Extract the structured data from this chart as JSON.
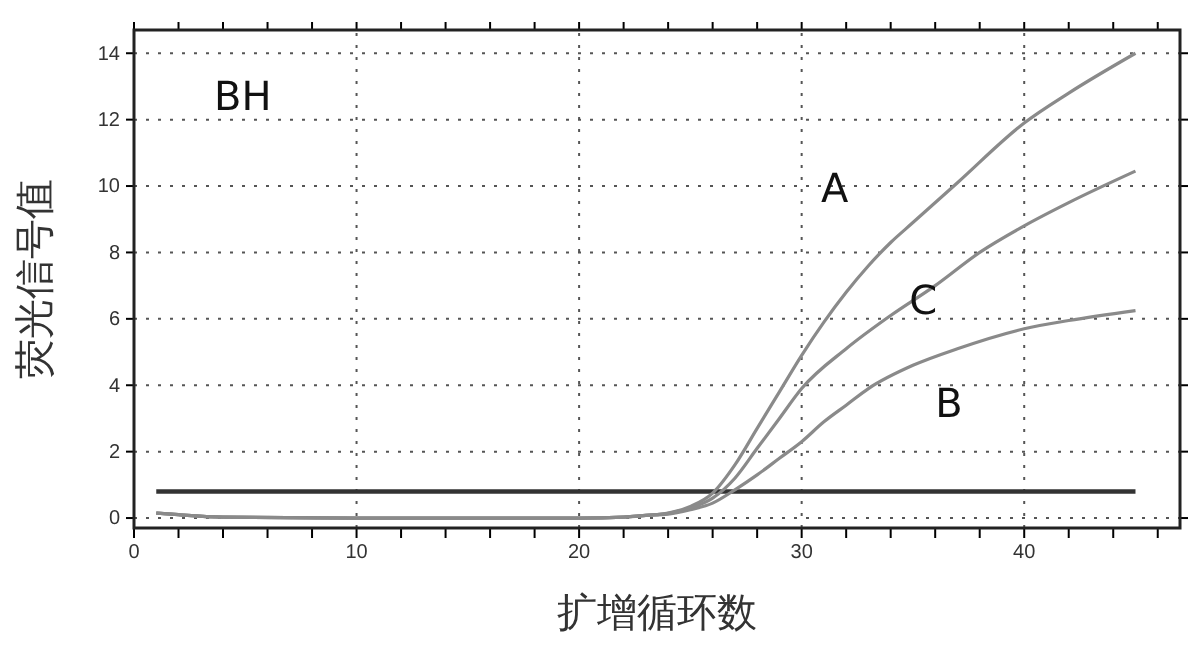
{
  "chart_data": {
    "type": "line",
    "xlabel": "扩增循环数",
    "ylabel": "荧光信号值",
    "annotations": [
      "BH"
    ],
    "xlim": [
      0,
      47
    ],
    "ylim": [
      -0.3,
      14.7
    ],
    "xticks": [
      0,
      {
        "value": 2,
        "label": null
      },
      {
        "value": 4,
        "label": null
      },
      {
        "value": 6,
        "label": null
      },
      {
        "value": 8,
        "label": null
      },
      10,
      {
        "value": 12,
        "label": null
      },
      {
        "value": 14,
        "label": null
      },
      {
        "value": 16,
        "label": null
      },
      {
        "value": 18,
        "label": null
      },
      20,
      {
        "value": 22,
        "label": null
      },
      {
        "value": 24,
        "label": null
      },
      {
        "value": 26,
        "label": null
      },
      {
        "value": 28,
        "label": null
      },
      30,
      {
        "value": 32,
        "label": null
      },
      {
        "value": 34,
        "label": null
      },
      {
        "value": 36,
        "label": null
      },
      {
        "value": 38,
        "label": null
      },
      40,
      {
        "value": 42,
        "label": null
      },
      {
        "value": 44,
        "label": null
      },
      {
        "value": 46,
        "label": null
      }
    ],
    "yticks": [
      0,
      2,
      4,
      6,
      8,
      10,
      12,
      14
    ],
    "grid": true,
    "line_style": "solid",
    "ref_lines": [
      {
        "axis": "y",
        "value": 0.8,
        "color": "#333333"
      }
    ],
    "series": [
      {
        "name": "A",
        "color": "#8a8a8a",
        "x": [
          1,
          2,
          4,
          10,
          20,
          22,
          23,
          24,
          25,
          26,
          27,
          28,
          29,
          30,
          31,
          32,
          33,
          34,
          35,
          37,
          40,
          42,
          45
        ],
        "values": [
          0.15,
          0.1,
          0.03,
          0,
          0,
          0.03,
          0.08,
          0.15,
          0.35,
          0.75,
          1.6,
          2.7,
          3.8,
          4.9,
          5.9,
          6.8,
          7.6,
          8.3,
          8.9,
          10.1,
          11.9,
          12.8,
          14.0
        ]
      },
      {
        "name": "B",
        "color": "#8a8a8a",
        "x": [
          1,
          2,
          4,
          10,
          20,
          22,
          23,
          24,
          25,
          26,
          27,
          28,
          29,
          30,
          31,
          32,
          33,
          35,
          37,
          40,
          42,
          45
        ],
        "values": [
          0.15,
          0.1,
          0.03,
          0,
          0,
          0.03,
          0.08,
          0.12,
          0.25,
          0.45,
          0.85,
          1.3,
          1.8,
          2.3,
          2.9,
          3.4,
          3.9,
          4.6,
          5.1,
          5.7,
          5.95,
          6.25
        ]
      },
      {
        "name": "C",
        "color": "#8a8a8a",
        "x": [
          1,
          2,
          4,
          10,
          20,
          22,
          23,
          24,
          25,
          26,
          27,
          28,
          29,
          30,
          32,
          34,
          36,
          38,
          40,
          42,
          45
        ],
        "values": [
          0.15,
          0.1,
          0.03,
          0,
          0,
          0.03,
          0.08,
          0.14,
          0.3,
          0.6,
          1.2,
          2.1,
          3.0,
          3.9,
          5.1,
          6.1,
          7.0,
          8.0,
          8.8,
          9.5,
          10.45
        ]
      }
    ]
  }
}
